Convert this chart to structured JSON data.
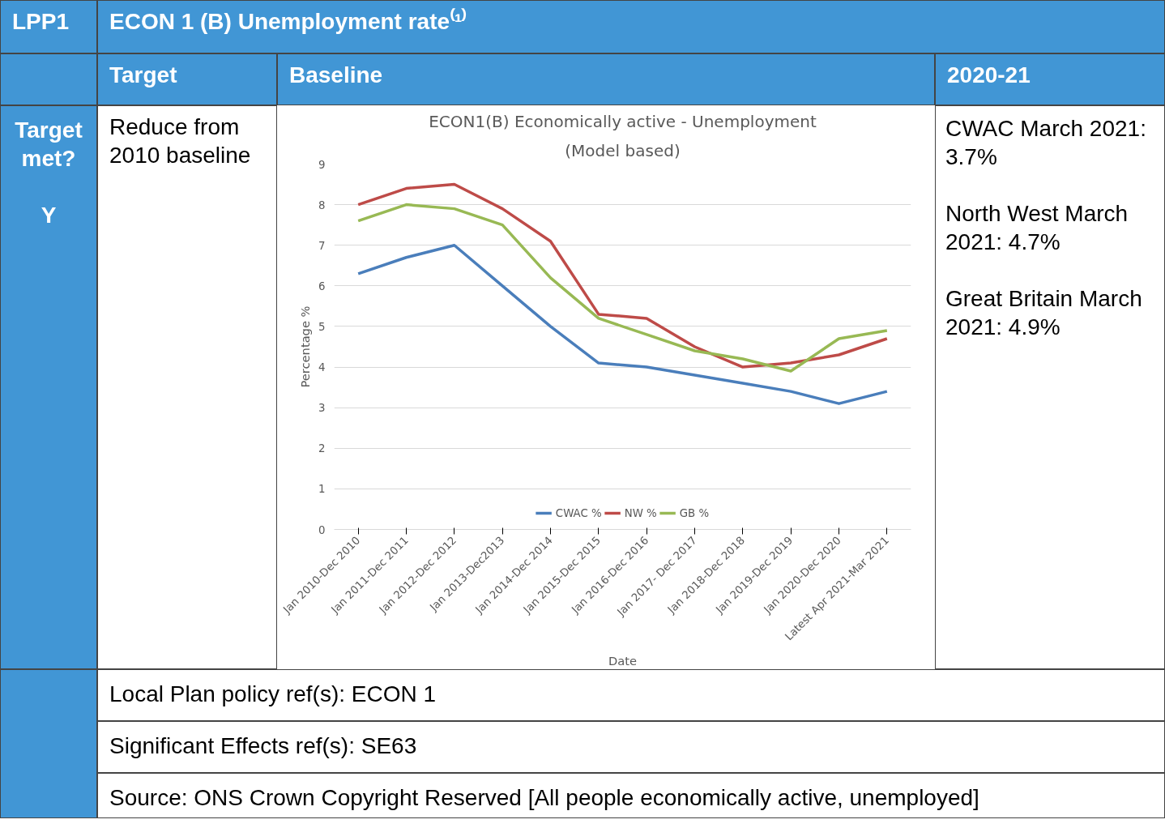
{
  "chart_data": {
    "type": "line",
    "title": "ECON1(B) Economically active - Unemployment",
    "subtitle": "(Model based)",
    "xlabel": "Date",
    "ylabel": "Percentage %",
    "categories": [
      "Jan 2010-Dec 2010",
      "Jan 2011-Dec 2011",
      "Jan 2012-Dec 2012",
      "Jan 2013-Dec2013",
      "Jan 2014-Dec 2014",
      "Jan 2015-Dec 2015",
      "Jan 2016-Dec 2016",
      "Jan 2017- Dec 2017",
      "Jan 2018-Dec 2018",
      "Jan 2019-Dec 2019",
      "Jan 2020-Dec 2020",
      "Latest Apr 2021-Mar 2021"
    ],
    "series": [
      {
        "name": "CWAC %",
        "color": "#4a7ebb",
        "values": [
          6.3,
          6.7,
          7.0,
          6.0,
          5.0,
          4.1,
          4.0,
          3.8,
          3.6,
          3.4,
          3.1,
          3.4
        ]
      },
      {
        "name": "NW %",
        "color": "#be4b48",
        "values": [
          8.0,
          8.4,
          8.5,
          7.9,
          7.1,
          5.3,
          5.2,
          4.5,
          4.0,
          4.1,
          4.3,
          4.7
        ]
      },
      {
        "name": "GB %",
        "color": "#98b954",
        "values": [
          7.6,
          8.0,
          7.9,
          7.5,
          6.2,
          5.2,
          4.8,
          4.4,
          4.2,
          3.9,
          4.7,
          4.9
        ]
      }
    ],
    "ylim": [
      0,
      9
    ],
    "yticks": [
      0,
      1,
      2,
      3,
      4,
      5,
      6,
      7,
      8,
      9
    ],
    "grid": "y",
    "legend": "bottom",
    "marker": "none",
    "line_style": "solid",
    "annotations": [
      "LPP1",
      "ECON 1 (B) Unemployment rate⁽¹⁾",
      "Target",
      "Baseline",
      "2020-21",
      "Target met?",
      "Y",
      "Reduce from 2010 baseline",
      "CWAC March 2021: 3.7%",
      "North West March 2021: 4.7%",
      "Great Britain March 2021: 4.9%",
      "Local Plan policy ref(s): ECON 1",
      "Significant Effects ref(s): SE63",
      "Source: ONS Crown Copyright Reserved [All people economically active, unemployed]"
    ]
  }
}
